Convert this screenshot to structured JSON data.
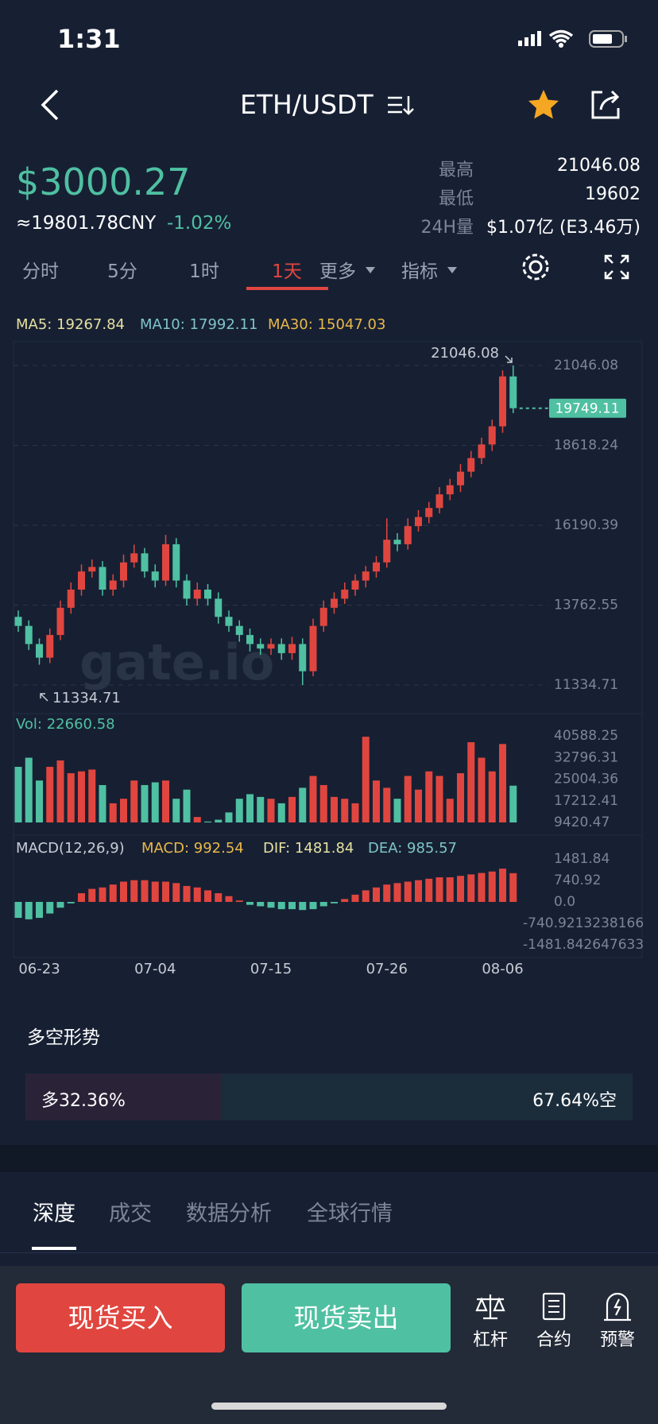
{
  "status_bar": {
    "time": "1:31"
  },
  "header": {
    "title": "ETH/USDT"
  },
  "ticker": {
    "price": "$3000.27",
    "cny": "≈19801.78CNY",
    "change": "-1.02%",
    "stats": [
      {
        "label": "最高",
        "value": "21046.08"
      },
      {
        "label": "最低",
        "value": "19602"
      },
      {
        "label": "24H量",
        "value": "$1.07亿 (E3.46万)"
      }
    ]
  },
  "periods": [
    "分时",
    "5分",
    "1时",
    "1天",
    "更多",
    "指标"
  ],
  "chart_data": {
    "type": "candlestick",
    "indicators": [
      "MA5: 19267.84",
      "MA10: 17992.11",
      "MA30: 15047.03"
    ],
    "categories": [
      null,
      null,
      "06-23",
      null,
      null,
      null,
      null,
      null,
      null,
      null,
      null,
      null,
      null,
      "07-04",
      null,
      null,
      null,
      null,
      null,
      null,
      null,
      null,
      null,
      null,
      "07-15",
      null,
      null,
      null,
      null,
      null,
      null,
      null,
      null,
      null,
      null,
      "07-26",
      null,
      null,
      null,
      null,
      null,
      null,
      null,
      null,
      null,
      null,
      "08-06",
      null
    ],
    "candles": [
      [
        13406,
        13600,
        12950,
        13130
      ],
      [
        13130,
        13300,
        12400,
        12579
      ],
      [
        12579,
        12750,
        11950,
        12165
      ],
      [
        12165,
        13050,
        12000,
        12855
      ],
      [
        12855,
        13900,
        12700,
        13682
      ],
      [
        13682,
        14450,
        13500,
        14234
      ],
      [
        14234,
        15000,
        14050,
        14785
      ],
      [
        14785,
        15150,
        14600,
        14923
      ],
      [
        14923,
        15100,
        14050,
        14234
      ],
      [
        14234,
        14700,
        14050,
        14510
      ],
      [
        14510,
        15300,
        14300,
        15061
      ],
      [
        15061,
        15600,
        14900,
        15337
      ],
      [
        15337,
        15500,
        14600,
        14785
      ],
      [
        14785,
        15000,
        14300,
        14510
      ],
      [
        14510,
        15900,
        14350,
        15613
      ],
      [
        15613,
        15800,
        14300,
        14510
      ],
      [
        14510,
        14700,
        13750,
        13958
      ],
      [
        13958,
        14450,
        13750,
        14234
      ],
      [
        14234,
        14400,
        13750,
        13958
      ],
      [
        13958,
        14150,
        13200,
        13406
      ],
      [
        13406,
        13600,
        12950,
        13130
      ],
      [
        13130,
        13300,
        12650,
        12855
      ],
      [
        12855,
        13050,
        12350,
        12579
      ],
      [
        12579,
        12750,
        12250,
        12441
      ],
      [
        12441,
        12750,
        12250,
        12579
      ],
      [
        12579,
        12750,
        12100,
        12303
      ],
      [
        12303,
        12800,
        12100,
        12579
      ],
      [
        12579,
        12750,
        11334.71,
        11752
      ],
      [
        11752,
        13350,
        11600,
        13130
      ],
      [
        13130,
        13900,
        12950,
        13682
      ],
      [
        13682,
        14150,
        13500,
        13958
      ],
      [
        13958,
        14450,
        13800,
        14234
      ],
      [
        14234,
        14700,
        14050,
        14510
      ],
      [
        14510,
        14950,
        14300,
        14785
      ],
      [
        14785,
        15250,
        14600,
        15061
      ],
      [
        15061,
        16400,
        14900,
        15750
      ],
      [
        15750,
        15950,
        15400,
        15613
      ],
      [
        15613,
        16400,
        15450,
        16164
      ],
      [
        16164,
        16650,
        16000,
        16440
      ],
      [
        16440,
        16900,
        16250,
        16716
      ],
      [
        16716,
        17350,
        16550,
        17130
      ],
      [
        17130,
        17600,
        16950,
        17406
      ],
      [
        17406,
        18050,
        17200,
        17819
      ],
      [
        17819,
        18450,
        17650,
        18233
      ],
      [
        18233,
        18850,
        18050,
        18647
      ],
      [
        18647,
        19400,
        18450,
        19198
      ],
      [
        19198,
        20900,
        19000,
        20715
      ],
      [
        20715,
        21046.08,
        19600,
        19749
      ]
    ],
    "ylim": [
      11334.71,
      21046.08
    ],
    "yticks": [
      21046.08,
      18618.24,
      16190.39,
      13762.55,
      11334.71
    ],
    "high_marker": 21046.08,
    "low_marker": 11334.71,
    "last_price": 19749.11,
    "watermark": "gate.io",
    "up_color": "#e0463f",
    "down_color": "#4fc0a2",
    "volume": {
      "label": "Vol: 22660.58",
      "values": [
        29435,
        32716,
        24513,
        29435,
        31731,
        27138,
        27794,
        28450,
        22873,
        16311,
        17951,
        24513,
        22873,
        23857,
        24513,
        17951,
        21232,
        11389,
        9748,
        10405,
        13030,
        17951,
        19592,
        18607,
        17951,
        16311,
        18607,
        21888,
        26154,
        22873,
        18607,
        17951,
        16311,
        40261,
        24513,
        21888,
        17951,
        26154,
        21232,
        27794,
        26154,
        17951,
        27138,
        38293,
        32716,
        27794,
        37637,
        22660.58
      ],
      "ylim": [
        9420.47,
        40588.25
      ],
      "yticks": [
        40588.25,
        32796.31,
        25004.36,
        17212.41,
        9420.47
      ]
    },
    "macd": {
      "labels": [
        "MACD(12,26,9)",
        "MACD: 992.54",
        "DIF: 1481.84",
        "DEA: 985.57"
      ],
      "values": [
        -550,
        -600,
        -550,
        -400,
        -200,
        -50,
        300,
        450,
        500,
        600,
        700,
        750,
        750,
        700,
        700,
        650,
        550,
        500,
        400,
        300,
        200,
        50,
        -100,
        -150,
        -200,
        -250,
        -250,
        -280,
        -250,
        -150,
        -50,
        100,
        250,
        400,
        500,
        600,
        650,
        700,
        750,
        800,
        850,
        850,
        900,
        950,
        1000,
        1050,
        1150,
        992.54
      ],
      "ylim": [
        -1481.84,
        1481.84
      ],
      "yticks": [
        1481.84,
        740.92,
        {
          "value": 0,
          "label": "0.0"
        },
        {
          "value": -740.92,
          "label": "-740.9213238166"
        },
        {
          "value": -1481.84,
          "label": "-1481.842647633"
        }
      ]
    }
  },
  "sentiment": {
    "title": "多空形势",
    "long_pct": 32.36,
    "long_label": "多32.36%",
    "short_label": "67.64%空"
  },
  "tabs": [
    "深度",
    "成交",
    "数据分析",
    "全球行情"
  ],
  "actions": {
    "buy": "现货买入",
    "sell": "现货卖出",
    "tools": [
      "杠杆",
      "合约",
      "预警"
    ]
  }
}
